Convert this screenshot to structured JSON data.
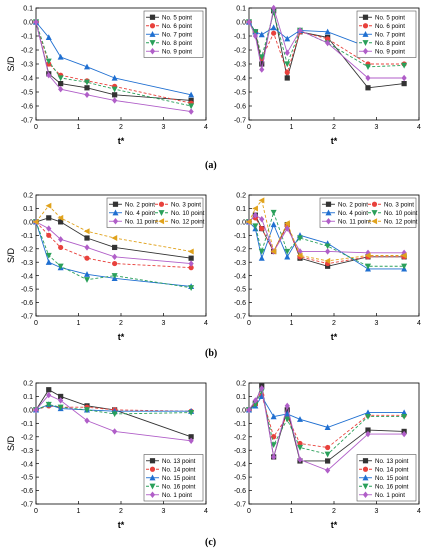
{
  "panel_labels": {
    "a": "(a)",
    "b": "(b)",
    "c": "(c)"
  },
  "chart_data": [
    {
      "type": "line",
      "xlabel": "t*",
      "ylabel": "S/D",
      "xlim": [
        0,
        4
      ],
      "xticks": [
        0,
        1,
        2,
        3,
        4
      ],
      "ylim": [
        -0.7,
        0.1
      ],
      "yticks": [
        0.1,
        0,
        -0.1,
        -0.2,
        -0.3,
        -0.4,
        -0.5,
        -0.6,
        -0.7
      ],
      "legend_position": "top-right",
      "series": [
        {
          "name": "No. 5 point",
          "color": "#333333",
          "marker": "square",
          "dash": "solid",
          "x": [
            0,
            0.3,
            0.58,
            1.2,
            1.85,
            3.65
          ],
          "y": [
            0,
            -0.37,
            -0.44,
            -0.47,
            -0.52,
            -0.56
          ]
        },
        {
          "name": "No. 6 point",
          "color": "#e8413c",
          "marker": "circle",
          "dash": "dash",
          "x": [
            0,
            0.3,
            0.58,
            1.2,
            1.85,
            3.65
          ],
          "y": [
            0,
            -0.3,
            -0.38,
            -0.42,
            -0.46,
            -0.58
          ]
        },
        {
          "name": "No. 7 point",
          "color": "#1f6fd1",
          "marker": "triangle",
          "dash": "solid",
          "x": [
            0,
            0.3,
            0.58,
            1.2,
            1.85,
            3.65
          ],
          "y": [
            0,
            -0.11,
            -0.25,
            -0.32,
            -0.4,
            -0.52
          ]
        },
        {
          "name": "No. 8 point",
          "color": "#2aa05a",
          "marker": "triangle-down",
          "dash": "dash",
          "x": [
            0,
            0.3,
            0.58,
            1.2,
            1.85,
            3.65
          ],
          "y": [
            0,
            -0.28,
            -0.4,
            -0.43,
            -0.48,
            -0.6
          ]
        },
        {
          "name": "No. 9 point",
          "color": "#b05ec8",
          "marker": "diamond",
          "dash": "solid",
          "x": [
            0,
            0.3,
            0.58,
            1.2,
            1.85,
            3.65
          ],
          "y": [
            0,
            -0.38,
            -0.48,
            -0.52,
            -0.56,
            -0.64
          ]
        }
      ]
    },
    {
      "type": "line",
      "xlabel": "t*",
      "ylabel": "",
      "xlim": [
        0,
        4
      ],
      "xticks": [
        0,
        1,
        2,
        3,
        4
      ],
      "ylim": [
        -0.7,
        0.1
      ],
      "yticks": [
        0.1,
        0,
        -0.1,
        -0.2,
        -0.3,
        -0.4,
        -0.5,
        -0.6,
        -0.7
      ],
      "legend_position": "top-right",
      "series": [
        {
          "name": "No. 5 point",
          "color": "#333333",
          "marker": "square",
          "dash": "solid",
          "x": [
            0,
            0.15,
            0.3,
            0.58,
            0.9,
            1.2,
            1.85,
            2.8,
            3.65
          ],
          "y": [
            0,
            -0.07,
            -0.3,
            0.08,
            -0.4,
            -0.07,
            -0.11,
            -0.47,
            -0.44
          ]
        },
        {
          "name": "No. 6 point",
          "color": "#e8413c",
          "marker": "circle",
          "dash": "dash",
          "x": [
            0,
            0.15,
            0.3,
            0.58,
            0.9,
            1.2,
            1.85,
            2.8,
            3.65
          ],
          "y": [
            0,
            -0.07,
            -0.26,
            -0.08,
            -0.36,
            -0.07,
            -0.12,
            -0.3,
            -0.3
          ]
        },
        {
          "name": "No. 7 point",
          "color": "#1f6fd1",
          "marker": "triangle",
          "dash": "solid",
          "x": [
            0,
            0.15,
            0.3,
            0.58,
            0.9,
            1.2,
            1.85,
            2.8,
            3.65
          ],
          "y": [
            0,
            -0.07,
            -0.09,
            -0.04,
            -0.12,
            -0.06,
            -0.07,
            -0.18,
            -0.16
          ]
        },
        {
          "name": "No. 8 point",
          "color": "#2aa05a",
          "marker": "triangle-down",
          "dash": "dash",
          "x": [
            0,
            0.15,
            0.3,
            0.58,
            0.9,
            1.2,
            1.85,
            2.8,
            3.65
          ],
          "y": [
            0,
            -0.07,
            -0.25,
            0.07,
            -0.3,
            -0.06,
            -0.15,
            -0.32,
            -0.31
          ]
        },
        {
          "name": "No. 9 point",
          "color": "#b05ec8",
          "marker": "diamond",
          "dash": "solid",
          "x": [
            0,
            0.15,
            0.3,
            0.58,
            0.9,
            1.2,
            1.85,
            2.8,
            3.65
          ],
          "y": [
            0,
            -0.1,
            -0.34,
            0.1,
            -0.22,
            -0.06,
            -0.15,
            -0.4,
            -0.4
          ]
        }
      ]
    },
    {
      "type": "line",
      "xlabel": "t*",
      "ylabel": "S/D",
      "xlim": [
        0,
        4
      ],
      "xticks": [
        0,
        1,
        2,
        3,
        4
      ],
      "ylim": [
        -0.7,
        0.2
      ],
      "yticks": [
        0.2,
        0.1,
        0,
        -0.1,
        -0.2,
        -0.3,
        -0.4,
        -0.5,
        -0.6,
        -0.7
      ],
      "legend_position": "top-right",
      "series": [
        {
          "name": "No. 2 point",
          "color": "#333333",
          "marker": "square",
          "dash": "solid",
          "x": [
            0,
            0.3,
            0.58,
            1.2,
            1.85,
            3.65
          ],
          "y": [
            0,
            0.03,
            0,
            -0.12,
            -0.19,
            -0.27
          ]
        },
        {
          "name": "No. 3 point",
          "color": "#e8413c",
          "marker": "circle",
          "dash": "dash",
          "x": [
            0,
            0.3,
            0.58,
            1.2,
            1.85,
            3.65
          ],
          "y": [
            0,
            -0.1,
            -0.19,
            -0.27,
            -0.31,
            -0.34
          ]
        },
        {
          "name": "No. 4 point",
          "color": "#1f6fd1",
          "marker": "triangle",
          "dash": "solid",
          "x": [
            0,
            0.3,
            0.58,
            1.2,
            1.85,
            3.65
          ],
          "y": [
            0,
            -0.3,
            -0.34,
            -0.39,
            -0.42,
            -0.48
          ]
        },
        {
          "name": "No. 10 point",
          "color": "#2aa05a",
          "marker": "triangle-down",
          "dash": "dash",
          "x": [
            0,
            0.3,
            0.58,
            1.2,
            1.85,
            3.65
          ],
          "y": [
            0,
            -0.25,
            -0.33,
            -0.43,
            -0.4,
            -0.49
          ]
        },
        {
          "name": "No. 11 point",
          "color": "#b05ec8",
          "marker": "diamond",
          "dash": "solid",
          "x": [
            0,
            0.3,
            0.58,
            1.2,
            1.85,
            3.65
          ],
          "y": [
            0,
            -0.05,
            -0.13,
            -0.19,
            -0.26,
            -0.31
          ]
        },
        {
          "name": "No. 12 point",
          "color": "#e0a21c",
          "marker": "triangle-left",
          "dash": "dash",
          "x": [
            0,
            0.3,
            0.58,
            1.2,
            1.85,
            3.65
          ],
          "y": [
            0,
            0.12,
            0.03,
            -0.07,
            -0.12,
            -0.22
          ]
        }
      ]
    },
    {
      "type": "line",
      "xlabel": "t*",
      "ylabel": "",
      "xlim": [
        0,
        4
      ],
      "xticks": [
        0,
        1,
        2,
        3,
        4
      ],
      "ylim": [
        -0.7,
        0.2
      ],
      "yticks": [
        0.2,
        0.1,
        0,
        -0.1,
        -0.2,
        -0.3,
        -0.4,
        -0.5,
        -0.6,
        -0.7
      ],
      "legend_position": "top-right",
      "series": [
        {
          "name": "No. 2 point",
          "color": "#333333",
          "marker": "square",
          "dash": "solid",
          "x": [
            0,
            0.15,
            0.3,
            0.58,
            0.9,
            1.2,
            1.85,
            2.8,
            3.65
          ],
          "y": [
            0,
            0.05,
            -0.05,
            -0.22,
            -0.02,
            -0.27,
            -0.33,
            -0.26,
            -0.26
          ]
        },
        {
          "name": "No. 3 point",
          "color": "#e8413c",
          "marker": "circle",
          "dash": "dash",
          "x": [
            0,
            0.15,
            0.3,
            0.58,
            0.9,
            1.2,
            1.85,
            2.8,
            3.65
          ],
          "y": [
            0,
            0.03,
            -0.05,
            -0.22,
            -0.03,
            -0.26,
            -0.31,
            -0.26,
            -0.26
          ]
        },
        {
          "name": "No. 4 point",
          "color": "#1f6fd1",
          "marker": "triangle",
          "dash": "solid",
          "x": [
            0,
            0.15,
            0.3,
            0.58,
            0.9,
            1.2,
            1.85,
            2.8,
            3.65
          ],
          "y": [
            0,
            -0.05,
            -0.27,
            -0.02,
            -0.26,
            -0.1,
            -0.16,
            -0.35,
            -0.35
          ]
        },
        {
          "name": "No. 10 point",
          "color": "#2aa05a",
          "marker": "triangle-down",
          "dash": "dash",
          "x": [
            0,
            0.15,
            0.3,
            0.58,
            0.9,
            1.2,
            1.85,
            2.8,
            3.65
          ],
          "y": [
            0,
            -0.03,
            -0.22,
            0.07,
            -0.22,
            -0.12,
            -0.18,
            -0.33,
            -0.33
          ]
        },
        {
          "name": "No. 11 point",
          "color": "#b05ec8",
          "marker": "diamond",
          "dash": "solid",
          "x": [
            0,
            0.15,
            0.3,
            0.58,
            0.9,
            1.2,
            1.85,
            2.8,
            3.65
          ],
          "y": [
            0,
            0.05,
            0.02,
            -0.22,
            -0.05,
            -0.22,
            -0.22,
            -0.23,
            -0.23
          ]
        },
        {
          "name": "No. 12 point",
          "color": "#e0a21c",
          "marker": "triangle-left",
          "dash": "dash",
          "x": [
            0,
            0.15,
            0.3,
            0.58,
            0.9,
            1.2,
            1.85,
            2.8,
            3.65
          ],
          "y": [
            0,
            0.1,
            0.16,
            -0.22,
            -0.01,
            -0.25,
            -0.29,
            -0.25,
            -0.25
          ]
        }
      ]
    },
    {
      "type": "line",
      "xlabel": "t*",
      "ylabel": "S/D",
      "xlim": [
        0,
        4
      ],
      "xticks": [
        0,
        1,
        2,
        3,
        4
      ],
      "ylim": [
        -0.7,
        0.2
      ],
      "yticks": [
        0.2,
        0.1,
        0,
        -0.1,
        -0.2,
        -0.3,
        -0.4,
        -0.5,
        -0.6,
        -0.7
      ],
      "legend_position": "bottom-right",
      "series": [
        {
          "name": "No. 13 point",
          "color": "#333333",
          "marker": "square",
          "dash": "solid",
          "x": [
            0,
            0.3,
            0.58,
            1.2,
            1.85,
            3.65
          ],
          "y": [
            0,
            0.15,
            0.1,
            0.03,
            0,
            -0.2
          ]
        },
        {
          "name": "No. 14 point",
          "color": "#e8413c",
          "marker": "circle",
          "dash": "dash",
          "x": [
            0,
            0.3,
            0.58,
            1.2,
            1.85,
            3.65
          ],
          "y": [
            0,
            0.03,
            0.02,
            0.02,
            0,
            -0.01
          ]
        },
        {
          "name": "No. 15 point",
          "color": "#1f6fd1",
          "marker": "triangle",
          "dash": "solid",
          "x": [
            0,
            0.3,
            0.58,
            1.2,
            1.85,
            3.65
          ],
          "y": [
            0,
            0.04,
            0.01,
            0,
            -0.01,
            -0.01
          ]
        },
        {
          "name": "No. 16 point",
          "color": "#2aa05a",
          "marker": "triangle-down",
          "dash": "dash",
          "x": [
            0,
            0.3,
            0.58,
            1.2,
            1.85,
            3.65
          ],
          "y": [
            0,
            0.04,
            0.02,
            0,
            -0.03,
            -0.02
          ]
        },
        {
          "name": "No. 1 point",
          "color": "#b05ec8",
          "marker": "diamond",
          "dash": "solid",
          "x": [
            0,
            0.3,
            0.58,
            1.2,
            1.85,
            3.65
          ],
          "y": [
            0,
            0.11,
            0.07,
            -0.08,
            -0.16,
            -0.23
          ]
        }
      ]
    },
    {
      "type": "line",
      "xlabel": "t*",
      "ylabel": "",
      "xlim": [
        0,
        4
      ],
      "xticks": [
        0,
        1,
        2,
        3,
        4
      ],
      "ylim": [
        -0.7,
        0.2
      ],
      "yticks": [
        0.2,
        0.1,
        0,
        -0.1,
        -0.2,
        -0.3,
        -0.4,
        -0.5,
        -0.6,
        -0.7
      ],
      "legend_position": "bottom-right",
      "series": [
        {
          "name": "No. 13 point",
          "color": "#333333",
          "marker": "square",
          "dash": "solid",
          "x": [
            0,
            0.15,
            0.3,
            0.58,
            0.9,
            1.2,
            1.85,
            2.8,
            3.65
          ],
          "y": [
            0,
            0.05,
            0.18,
            -0.35,
            0,
            -0.38,
            -0.38,
            -0.15,
            -0.16
          ]
        },
        {
          "name": "No. 14 point",
          "color": "#e8413c",
          "marker": "circle",
          "dash": "dash",
          "x": [
            0,
            0.15,
            0.3,
            0.58,
            0.9,
            1.2,
            1.85,
            2.8,
            3.65
          ],
          "y": [
            0,
            0.04,
            0.11,
            -0.2,
            -0.05,
            -0.25,
            -0.28,
            -0.04,
            -0.04
          ]
        },
        {
          "name": "No. 15 point",
          "color": "#1f6fd1",
          "marker": "triangle",
          "dash": "solid",
          "x": [
            0,
            0.15,
            0.3,
            0.58,
            0.9,
            1.2,
            1.85,
            2.8,
            3.65
          ],
          "y": [
            0,
            0.03,
            0.1,
            -0.05,
            -0.03,
            -0.07,
            -0.13,
            -0.02,
            -0.02
          ]
        },
        {
          "name": "No. 16 point",
          "color": "#2aa05a",
          "marker": "triangle-down",
          "dash": "dash",
          "x": [
            0,
            0.15,
            0.3,
            0.58,
            0.9,
            1.2,
            1.85,
            2.8,
            3.65
          ],
          "y": [
            0,
            0.04,
            0.14,
            -0.26,
            -0.07,
            -0.28,
            -0.33,
            -0.05,
            -0.05
          ]
        },
        {
          "name": "No. 1 point",
          "color": "#b05ec8",
          "marker": "diamond",
          "dash": "solid",
          "x": [
            0,
            0.15,
            0.3,
            0.58,
            0.9,
            1.2,
            1.85,
            2.8,
            3.65
          ],
          "y": [
            0,
            0.07,
            0.16,
            -0.35,
            0.03,
            -0.37,
            -0.45,
            -0.18,
            -0.18
          ]
        }
      ]
    }
  ]
}
